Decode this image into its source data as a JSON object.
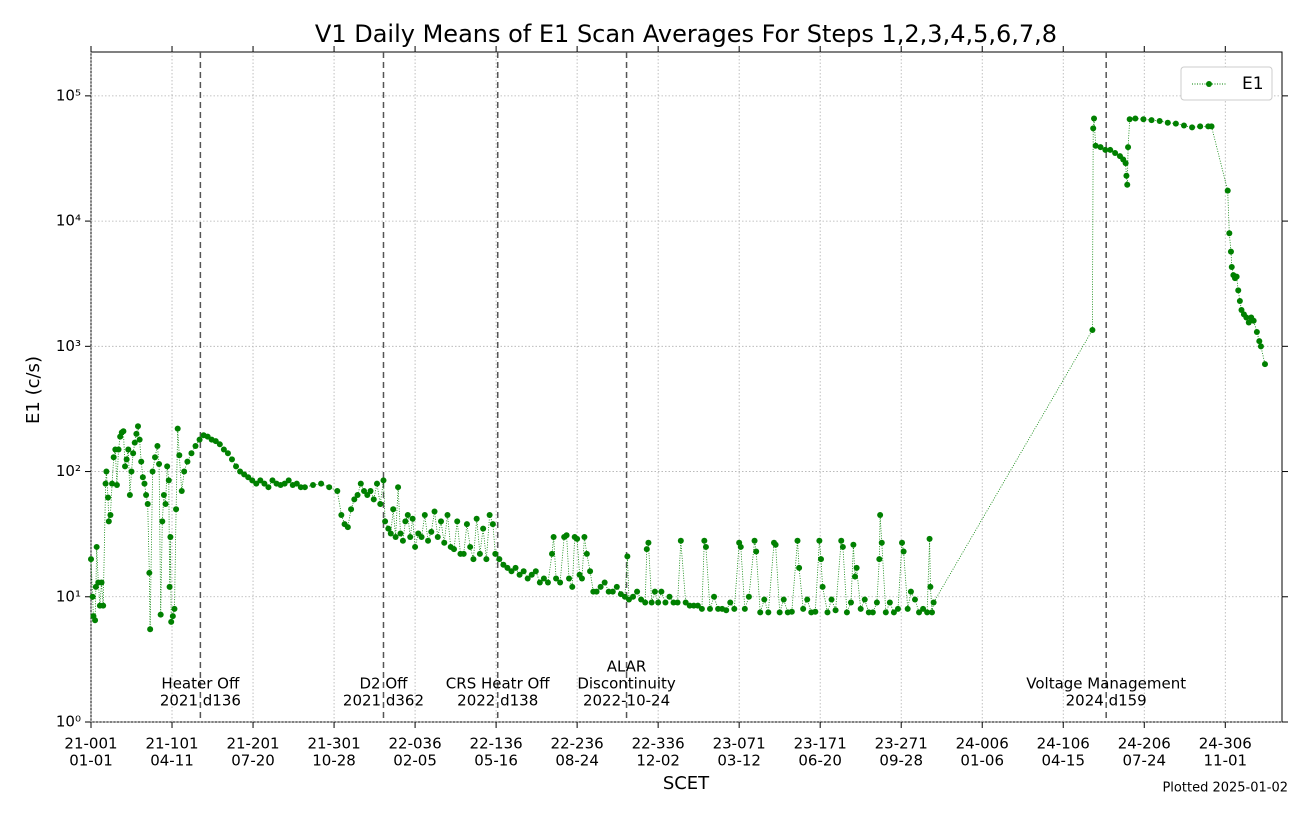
{
  "chart_data": {
    "type": "line",
    "title": "V1 Daily Means of E1 Scan Averages For Steps 1,2,3,4,5,6,7,8",
    "x_label": "SCET",
    "y_label": "E1 (c/s)",
    "footnote": "Plotted 2025-01-02",
    "yscale": "log",
    "grid": true,
    "legend": "upper right",
    "xlim": [
      "21-001",
      "25-010"
    ],
    "ylim": [
      1,
      224000
    ],
    "xticks": [
      {
        "value": "21-001",
        "label": [
          "21-001",
          "01-01"
        ]
      },
      {
        "value": "21-101",
        "label": [
          "21-101",
          "04-11"
        ]
      },
      {
        "value": "21-201",
        "label": [
          "21-201",
          "07-20"
        ]
      },
      {
        "value": "21-301",
        "label": [
          "21-301",
          "10-28"
        ]
      },
      {
        "value": "22-036",
        "label": [
          "22-036",
          "02-05"
        ]
      },
      {
        "value": "22-136",
        "label": [
          "22-136",
          "05-16"
        ]
      },
      {
        "value": "22-236",
        "label": [
          "22-236",
          "08-24"
        ]
      },
      {
        "value": "22-336",
        "label": [
          "22-336",
          "12-02"
        ]
      },
      {
        "value": "23-071",
        "label": [
          "23-071",
          "03-12"
        ]
      },
      {
        "value": "23-171",
        "label": [
          "23-171",
          "06-20"
        ]
      },
      {
        "value": "23-271",
        "label": [
          "23-271",
          "09-28"
        ]
      },
      {
        "value": "24-006",
        "label": [
          "24-006",
          "01-06"
        ]
      },
      {
        "value": "24-106",
        "label": [
          "24-106",
          "04-15"
        ]
      },
      {
        "value": "24-206",
        "label": [
          "24-206",
          "07-24"
        ]
      },
      {
        "value": "24-306",
        "label": [
          "24-306",
          "11-01"
        ]
      }
    ],
    "yticks": [
      {
        "value": 1,
        "label": "10⁰"
      },
      {
        "value": 10,
        "label": "10¹"
      },
      {
        "value": 100,
        "label": "10²"
      },
      {
        "value": 1000,
        "label": "10³"
      },
      {
        "value": 10000,
        "label": "10⁴"
      },
      {
        "value": 100000,
        "label": "10⁵"
      }
    ],
    "events": [
      {
        "x": "21-136",
        "label": [
          "Heater Off",
          "2021 d136"
        ]
      },
      {
        "x": "21-362",
        "label": [
          "D2 Off",
          "2021 d362"
        ]
      },
      {
        "x": "22-138",
        "label": [
          "CRS Heatr Off",
          "2022 d138"
        ]
      },
      {
        "x": "22-297",
        "label": [
          "ALAR",
          "Discontinuity",
          "2022-10-24"
        ]
      },
      {
        "x": "24-159",
        "label": [
          "Voltage Management",
          "2024 d159"
        ]
      }
    ],
    "x": [
      "21-001",
      "21-003",
      "21-004",
      "21-006",
      "21-007",
      "21-008",
      "21-010",
      "21-012",
      "21-014",
      "21-016",
      "21-019",
      "21-020",
      "21-022",
      "21-023",
      "21-025",
      "21-027",
      "21-029",
      "21-031",
      "21-033",
      "21-035",
      "21-037",
      "21-039",
      "21-041",
      "21-043",
      "21-045",
      "21-047",
      "21-049",
      "21-051",
      "21-053",
      "21-055",
      "21-057",
      "21-059",
      "21-061",
      "21-063",
      "21-065",
      "21-067",
      "21-069",
      "21-071",
      "21-073",
      "21-074",
      "21-077",
      "21-080",
      "21-083",
      "21-085",
      "21-087",
      "21-089",
      "21-091",
      "21-093",
      "21-095",
      "21-097",
      "21-098",
      "21-099",
      "21-100",
      "21-102",
      "21-104",
      "21-106",
      "21-108",
      "21-110",
      "21-113",
      "21-116",
      "21-120",
      "21-125",
      "21-130",
      "21-135",
      "21-140",
      "21-145",
      "21-150",
      "21-155",
      "21-160",
      "21-165",
      "21-170",
      "21-175",
      "21-180",
      "21-185",
      "21-190",
      "21-195",
      "21-200",
      "21-205",
      "21-210",
      "21-215",
      "21-220",
      "21-225",
      "21-230",
      "21-235",
      "21-240",
      "21-245",
      "21-250",
      "21-255",
      "21-260",
      "21-265",
      "21-275",
      "21-285",
      "21-295",
      "21-305",
      "21-310",
      "21-314",
      "21-318",
      "21-322",
      "21-326",
      "21-330",
      "21-334",
      "21-338",
      "21-342",
      "21-346",
      "21-350",
      "21-354",
      "21-358",
      "21-362",
      "21-364",
      "22-003",
      "22-006",
      "22-009",
      "22-012",
      "22-015",
      "22-018",
      "22-021",
      "22-024",
      "22-027",
      "22-030",
      "22-033",
      "22-036",
      "22-040",
      "22-044",
      "22-048",
      "22-052",
      "22-056",
      "22-060",
      "22-064",
      "22-068",
      "22-072",
      "22-076",
      "22-080",
      "22-084",
      "22-088",
      "22-092",
      "22-096",
      "22-100",
      "22-104",
      "22-108",
      "22-112",
      "22-116",
      "22-120",
      "22-124",
      "22-128",
      "22-132",
      "22-135",
      "22-140",
      "22-145",
      "22-150",
      "22-155",
      "22-160",
      "22-165",
      "22-170",
      "22-175",
      "22-180",
      "22-185",
      "22-190",
      "22-195",
      "22-200",
      "22-205",
      "22-207",
      "22-210",
      "22-215",
      "22-220",
      "22-223",
      "22-226",
      "22-230",
      "22-233",
      "22-236",
      "22-239",
      "22-242",
      "22-245",
      "22-248",
      "22-252",
      "22-256",
      "22-260",
      "22-265",
      "22-270",
      "22-275",
      "22-280",
      "22-285",
      "22-290",
      "22-295",
      "22-298",
      "22-300",
      "22-305",
      "22-310",
      "22-315",
      "22-320",
      "22-322",
      "22-324",
      "22-328",
      "22-332",
      "22-336",
      "22-340",
      "22-345",
      "22-350",
      "22-355",
      "22-360",
      "22-364",
      "23-005",
      "23-010",
      "23-015",
      "23-020",
      "23-025",
      "23-028",
      "23-030",
      "23-035",
      "23-040",
      "23-045",
      "23-050",
      "23-055",
      "23-060",
      "23-065",
      "23-071",
      "23-073",
      "23-078",
      "23-083",
      "23-090",
      "23-092",
      "23-097",
      "23-102",
      "23-107",
      "23-114",
      "23-116",
      "23-121",
      "23-126",
      "23-131",
      "23-136",
      "23-143",
      "23-145",
      "23-150",
      "23-155",
      "23-160",
      "23-165",
      "23-170",
      "23-172",
      "23-174",
      "23-180",
      "23-185",
      "23-190",
      "23-197",
      "23-199",
      "23-204",
      "23-209",
      "23-212",
      "23-214",
      "23-216",
      "23-221",
      "23-226",
      "23-231",
      "23-236",
      "23-241",
      "23-244",
      "23-245",
      "23-247",
      "23-252",
      "23-257",
      "23-262",
      "23-267",
      "23-272",
      "23-274",
      "23-279",
      "23-283",
      "23-288",
      "23-293",
      "23-298",
      "23-303",
      "23-306",
      "23-307",
      "23-309",
      "23-311",
      "24-142",
      "24-143",
      "24-144",
      "24-146",
      "24-152",
      "24-158",
      "24-164",
      "24-170",
      "24-176",
      "24-180",
      "24-183",
      "24-184",
      "24-185",
      "24-186",
      "24-188",
      "24-195",
      "24-205",
      "24-215",
      "24-225",
      "24-235",
      "24-245",
      "24-255",
      "24-265",
      "24-275",
      "24-285",
      "24-289",
      "24-309",
      "24-311",
      "24-313",
      "24-314",
      "24-316",
      "24-318",
      "24-320",
      "24-322",
      "24-324",
      "24-326",
      "24-329",
      "24-332",
      "24-335",
      "24-338",
      "24-341",
      "24-345",
      "24-348",
      "24-350",
      "24-355"
    ],
    "series": [
      {
        "name": "E1",
        "color": "#008000",
        "values": [
          20,
          10,
          7,
          6.5,
          12,
          25,
          13,
          8.5,
          13,
          8.5,
          80,
          100,
          62,
          40,
          45,
          80,
          130,
          150,
          78,
          150,
          190,
          205,
          210,
          110,
          125,
          150,
          65,
          100,
          140,
          170,
          200,
          230,
          180,
          120,
          90,
          80,
          65,
          55,
          15.5,
          5.5,
          100,
          130,
          160,
          115,
          7.2,
          40,
          65,
          55,
          110,
          85,
          12,
          30,
          6.3,
          7,
          8,
          50,
          220,
          135,
          70,
          100,
          120,
          140,
          160,
          180,
          195,
          190,
          180,
          175,
          165,
          150,
          140,
          125,
          110,
          100,
          95,
          90,
          85,
          80,
          85,
          80,
          75,
          85,
          80,
          78,
          80,
          85,
          78,
          80,
          75,
          75,
          78,
          80,
          75,
          70,
          45,
          38,
          36,
          50,
          60,
          65,
          80,
          70,
          65,
          70,
          60,
          80,
          55,
          85,
          40,
          35,
          32,
          50,
          30,
          75,
          32,
          28,
          40,
          45,
          30,
          42,
          25,
          32,
          30,
          45,
          28,
          33,
          48,
          30,
          40,
          27,
          45,
          25,
          24,
          40,
          22,
          22,
          38,
          25,
          20,
          42,
          22,
          35,
          20,
          45,
          38,
          22,
          20,
          18,
          17,
          16,
          17,
          15,
          16,
          14,
          15,
          16,
          13,
          14,
          13,
          22,
          30,
          14,
          13,
          30,
          31,
          14,
          12,
          30,
          29,
          15,
          14,
          30,
          22,
          16,
          11,
          11,
          12,
          13,
          11,
          11,
          12,
          10.5,
          10,
          21,
          9.5,
          10,
          11,
          9.5,
          9,
          24,
          27,
          9,
          11,
          9,
          11,
          9,
          10,
          9,
          9,
          28,
          9,
          8.5,
          8.5,
          8.5,
          8,
          28,
          25,
          8,
          10,
          8,
          8,
          7.8,
          9,
          8,
          27,
          25,
          8,
          10,
          28,
          23,
          7.5,
          9.5,
          7.5,
          27,
          26,
          7.5,
          9.5,
          7.5,
          7.6,
          28,
          17,
          8,
          9.5,
          7.5,
          7.6,
          28,
          20,
          12,
          7.5,
          9.5,
          7.8,
          28,
          25,
          7.5,
          9,
          26,
          14.5,
          17,
          8,
          9.5,
          7.5,
          7.5,
          9,
          20,
          45,
          27,
          7.5,
          9,
          7.5,
          8,
          27,
          23,
          8,
          11,
          9.5,
          7.5,
          8,
          7.5,
          29,
          12,
          7.5,
          9,
          1350,
          55000,
          66000,
          40000,
          39000,
          37000,
          37000,
          35000,
          33000,
          31000,
          29000,
          23000,
          19500,
          39000,
          65000,
          66000,
          65000,
          64000,
          63000,
          61000,
          60000,
          58000,
          56000,
          57000,
          57000,
          57000,
          17500,
          8000,
          5700,
          4300,
          3700,
          3500,
          3600,
          2800,
          2300,
          1950,
          1800,
          1700,
          1550,
          1700,
          1600,
          1300,
          1100,
          1000,
          720
        ]
      }
    ]
  }
}
